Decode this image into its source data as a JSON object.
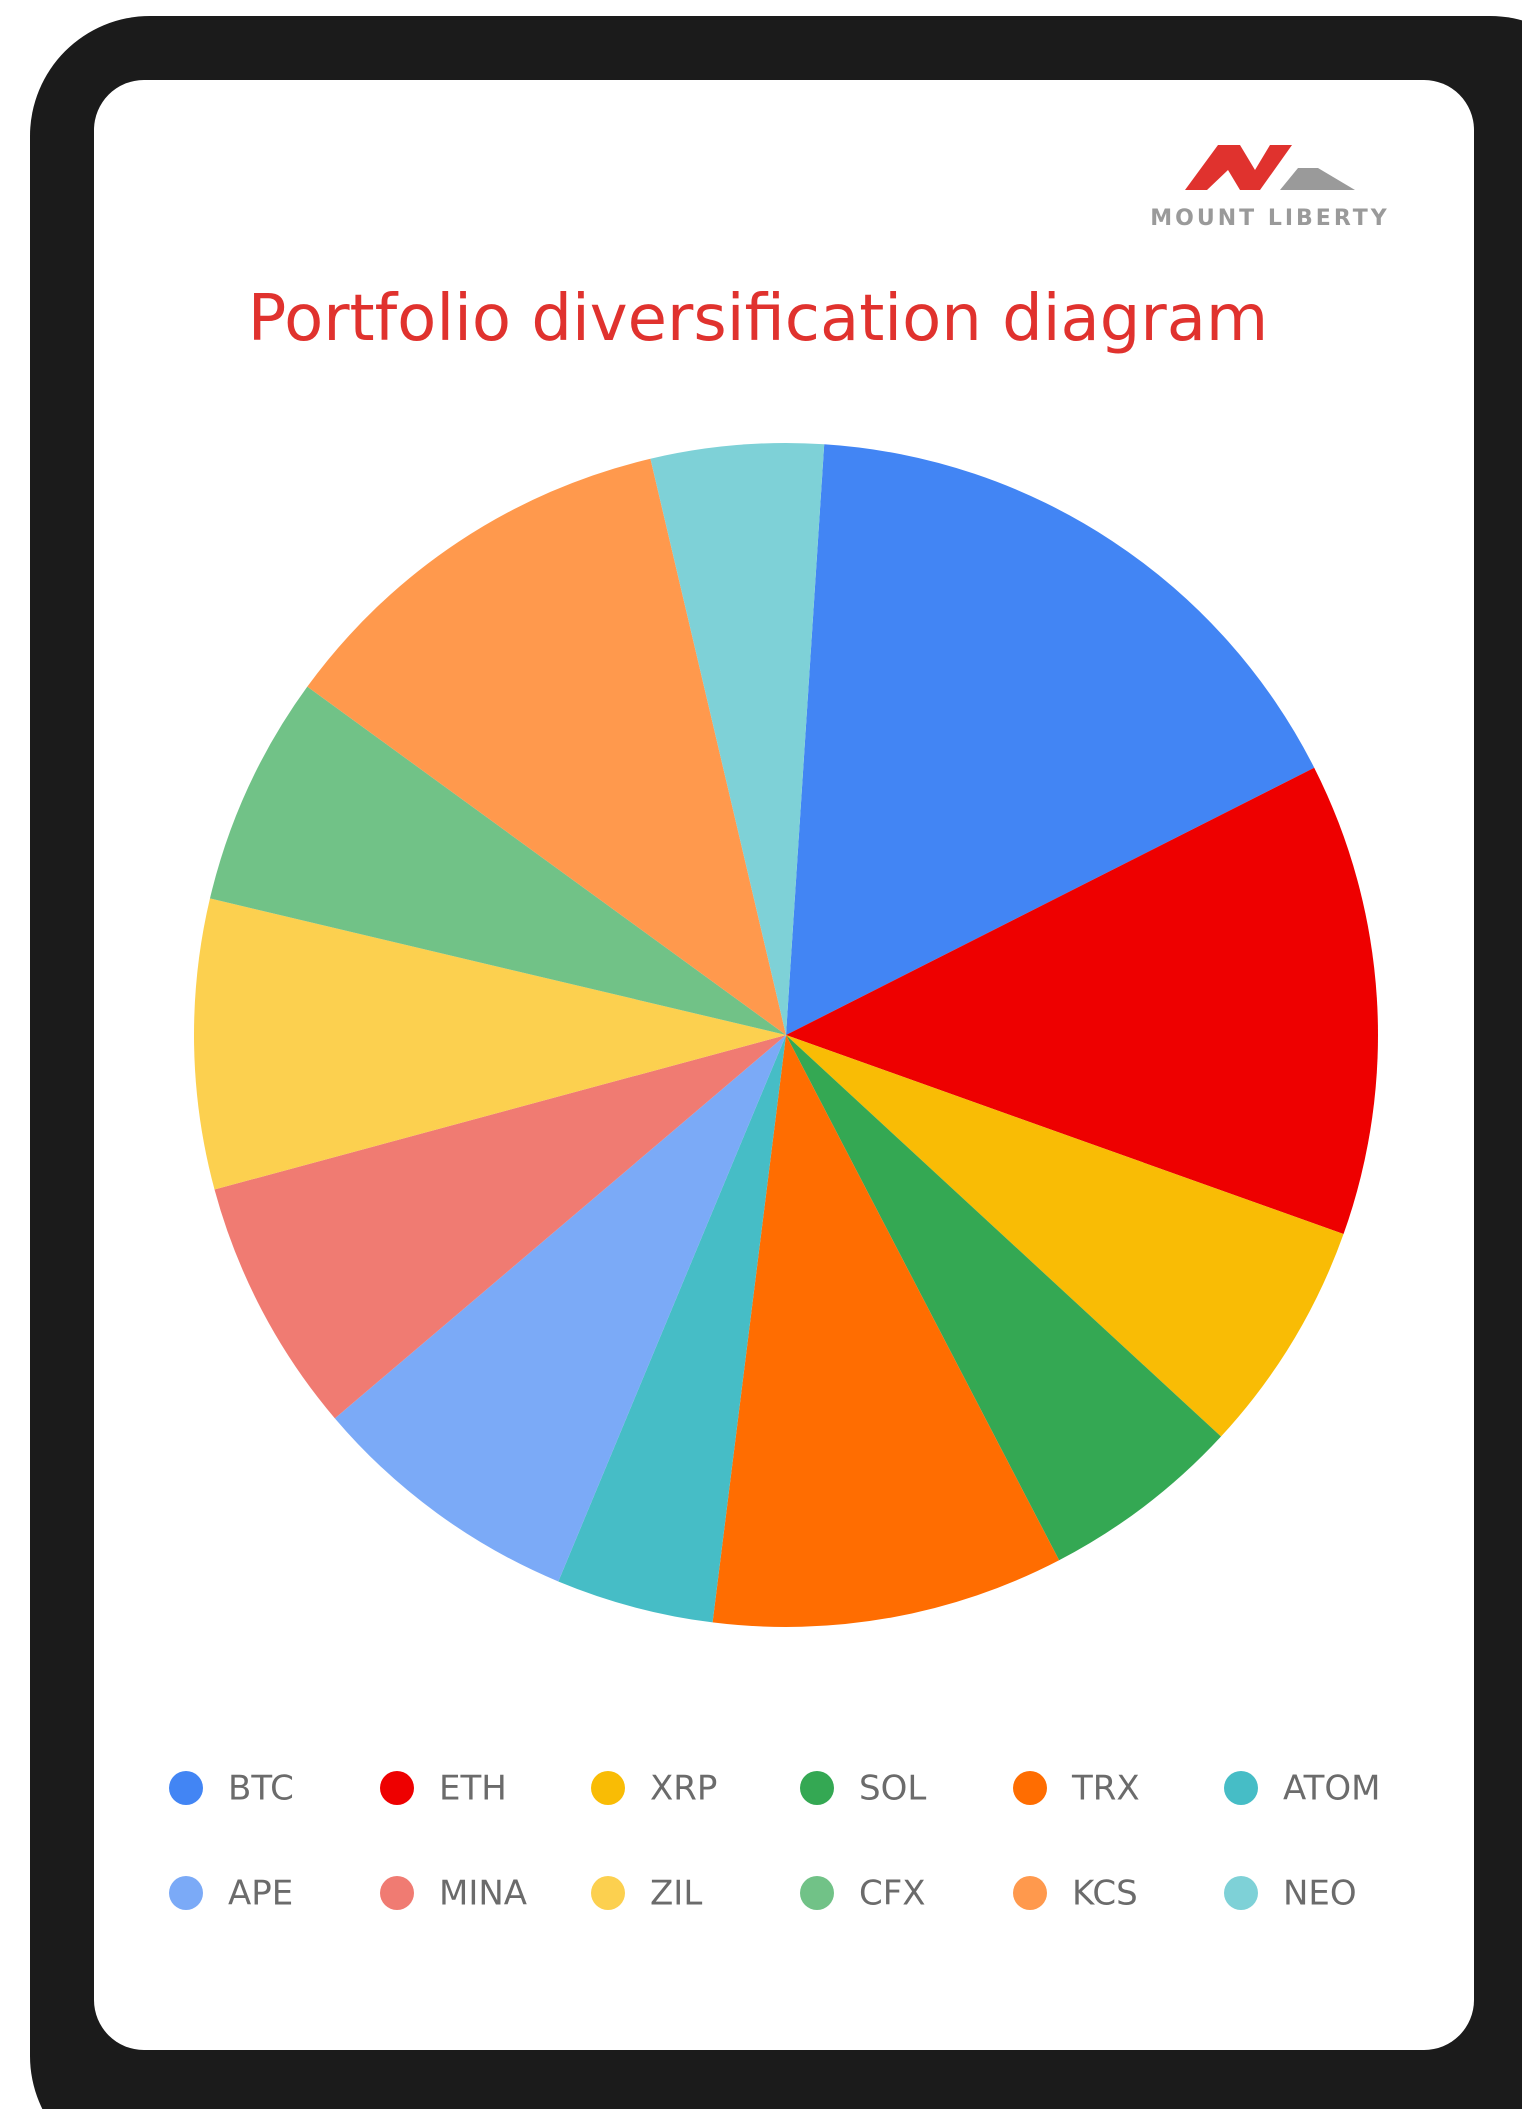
{
  "header": {
    "brand": "MOUNT LIBERTY"
  },
  "chart_data": {
    "type": "pie",
    "title": "Portfolio diversification diagram",
    "categories": [
      "BTC",
      "ETH",
      "XRP",
      "SOL",
      "TRX",
      "ATOM",
      "APE",
      "MINA",
      "ZIL",
      "CFX",
      "KCS",
      "NEO"
    ],
    "values": [
      16.5,
      12.9,
      6.4,
      5.5,
      9.6,
      4.3,
      7.5,
      7.0,
      7.9,
      6.3,
      11.3,
      4.7
    ],
    "colors": [
      "#4285f4",
      "#ee0000",
      "#f9bc05",
      "#34a853",
      "#ff6d01",
      "#46bdc6",
      "#7baaf7",
      "#f07b72",
      "#fcd04f",
      "#71c287",
      "#ff994d",
      "#7ed1d7"
    ]
  }
}
